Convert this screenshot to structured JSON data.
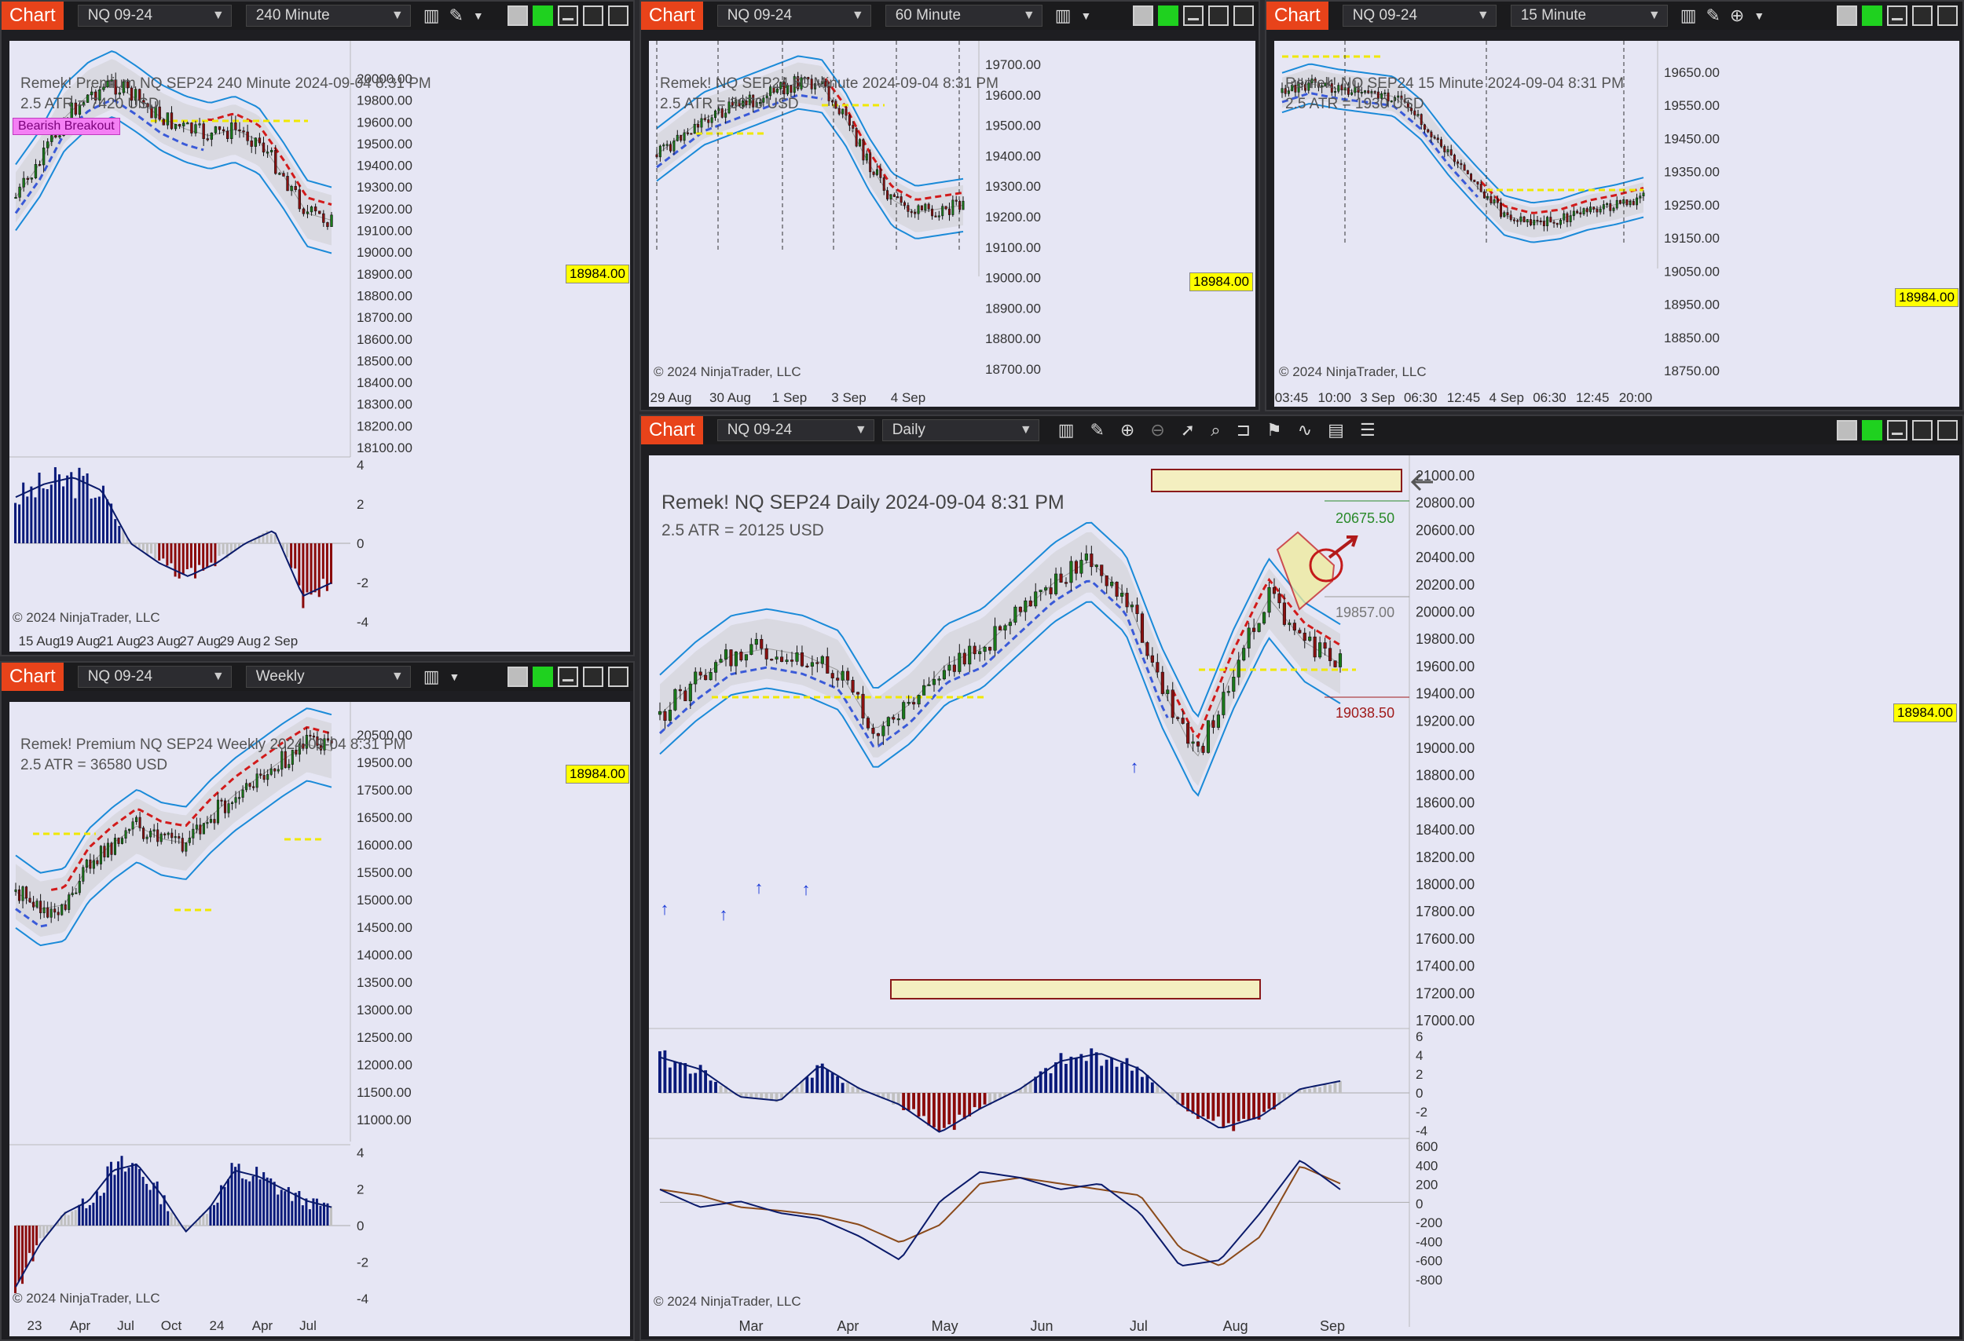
{
  "app": {
    "tab_label": "Chart",
    "instrument": "NQ 09-24"
  },
  "colors": {
    "tab": "#e8431a",
    "plot_bg": "#e6e6f4",
    "price_tag": "#ffff00",
    "green_button": "#1fd11f",
    "up_candle": "#1a7a1a",
    "down_candle": "#8a1010",
    "band": "#1a8ad8",
    "stop_down": "#d21a1a",
    "stop_up": "#3a5ad8",
    "hist_up": "#0a1a7a",
    "hist_down": "#8a0a0a",
    "hist_neutral": "#c0c0c0"
  },
  "icons": [
    "bar-chart-icon",
    "pencil-icon",
    "zoom-in-icon",
    "zoom-out-icon",
    "pointer-icon",
    "data-box-icon",
    "window-icon",
    "indicators-icon",
    "strategy-icon",
    "templates-icon",
    "list-icon"
  ],
  "last_price": "18984.00",
  "copyright": "© 2024 NinjaTrader, LLC",
  "panels": {
    "p240": {
      "interval": "240 Minute",
      "overlay1": "Remek!  Premium  NQ SEP24  240 Minute  2024-09-04 8:31 PM",
      "overlay2": "2.5 ATR = 7420 USD",
      "badge": "Bearish Breakout",
      "y_labels": [
        "20000.00",
        "19800.00",
        "19600.00",
        "19500.00",
        "19400.00",
        "19300.00",
        "19200.00",
        "19100.00",
        "19000.00",
        "18900.00",
        "18800.00",
        "18700.00",
        "18600.00",
        "18500.00",
        "18400.00",
        "18300.00",
        "18200.00",
        "18100.00"
      ],
      "osc_labels": [
        "4",
        "2",
        "0",
        "-2",
        "-4"
      ],
      "x_labels": [
        "15 Aug",
        "19 Aug",
        "21 Aug",
        "23 Aug",
        "27 Aug",
        "29 Aug",
        "2 Sep"
      ]
    },
    "p60": {
      "interval": "60 Minute",
      "overlay1": "Remek!  NQ SEP24  60 Minute  2024-09-04 8:31 PM",
      "overlay2": "2.5 ATR = 3970 USD",
      "y_labels": [
        "19700.00",
        "19600.00",
        "19500.00",
        "19400.00",
        "19300.00",
        "19200.00",
        "19100.00",
        "19000.00",
        "18900.00",
        "18800.00",
        "18700.00"
      ],
      "x_labels": [
        "29 Aug",
        "30 Aug",
        "1 Sep",
        "3 Sep",
        "4 Sep"
      ]
    },
    "p15": {
      "interval": "15 Minute",
      "overlay1": "Remek!  NQ SEP24  15 Minute  2024-09-04 8:31 PM",
      "overlay2": "2.5 ATR = 1930 USD",
      "y_labels": [
        "19650.00",
        "19550.00",
        "19450.00",
        "19350.00",
        "19250.00",
        "19150.00",
        "19050.00",
        "18950.00",
        "18850.00",
        "18750.00"
      ],
      "x_labels": [
        "03:45",
        "10:00",
        "3 Sep",
        "06:30",
        "12:45",
        "4 Sep",
        "06:30",
        "12:45",
        "20:00"
      ]
    },
    "pweekly": {
      "interval": "Weekly",
      "overlay1": "Remek!  Premium  NQ SEP24  Weekly  2024-09-04 8:31 PM",
      "overlay2": "2.5 ATR = 36580 USD",
      "y_labels": [
        "20500.00",
        "19500.00",
        "17500.00",
        "16500.00",
        "16000.00",
        "15500.00",
        "15000.00",
        "14500.00",
        "14000.00",
        "13500.00",
        "13000.00",
        "12500.00",
        "12000.00",
        "11500.00",
        "11000.00"
      ],
      "osc_labels": [
        "4",
        "2",
        "0",
        "-2",
        "-4"
      ],
      "x_labels": [
        "23",
        "Apr",
        "Jul",
        "Oct",
        "24",
        "Apr",
        "Jul"
      ]
    },
    "pdaily": {
      "interval": "Daily",
      "overlay1": "Remek!  NQ SEP24  Daily  2024-09-04 8:31 PM",
      "overlay2": "2.5 ATR = 20125 USD",
      "y_labels": [
        "21000.00",
        "20800.00",
        "20600.00",
        "20400.00",
        "20200.00",
        "20000.00",
        "19800.00",
        "19600.00",
        "19400.00",
        "19200.00",
        "19000.00",
        "18800.00",
        "18600.00",
        "18400.00",
        "18200.00",
        "18000.00",
        "17800.00",
        "17600.00",
        "17400.00",
        "17200.00",
        "17000.00"
      ],
      "osc_labels": [
        "6",
        "4",
        "2",
        "0",
        "-2",
        "-4"
      ],
      "osc2_labels": [
        "600",
        "400",
        "200",
        "0",
        "-200",
        "-400",
        "-600",
        "-800"
      ],
      "x_labels": [
        "Mar",
        "Apr",
        "May",
        "Jun",
        "Jul",
        "Aug",
        "Sep"
      ],
      "level1": "20675.50",
      "level2": "19857.00",
      "level3": "19038.50"
    }
  }
}
